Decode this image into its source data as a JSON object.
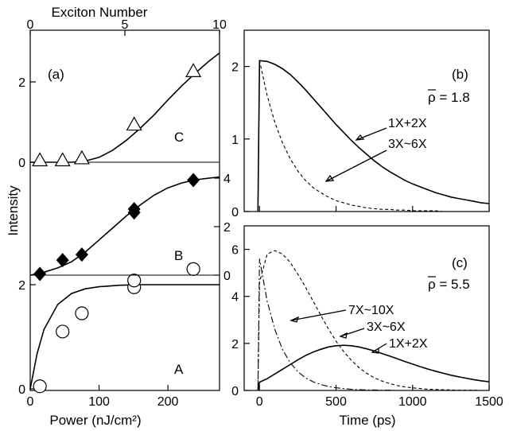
{
  "chart_data": [
    {
      "panel": "a",
      "type": "scatter",
      "panel_label": "(a)",
      "xlabel": "Power (nJ/cm²)",
      "x2label": "Exciton Number",
      "ylabel": "Intensity",
      "xlim": [
        0,
        275
      ],
      "x2lim": [
        0,
        10
      ],
      "x_ticks": [
        0,
        100,
        200
      ],
      "x2_ticks": [
        0,
        5,
        10
      ],
      "series": [
        {
          "name": "A",
          "marker": "open-circle",
          "x": [
            14,
            47,
            75,
            151,
            151,
            237
          ],
          "y": [
            0.05,
            1.1,
            1.45,
            1.95,
            2.08,
            2.3
          ],
          "fit_x": [
            0,
            10,
            20,
            40,
            60,
            80,
            100,
            130,
            160,
            200,
            240,
            275
          ],
          "fit_y": [
            0,
            0.68,
            1.14,
            1.62,
            1.83,
            1.92,
            1.96,
            1.99,
            2.0,
            2.0,
            2.0,
            2.0
          ],
          "y_ticks_left": [
            0,
            2
          ]
        },
        {
          "name": "B",
          "marker": "filled-diamond",
          "x": [
            14,
            47,
            75,
            151,
            151,
            237
          ],
          "y": [
            0.05,
            0.62,
            0.85,
            2.58,
            2.72,
            3.92
          ],
          "fit_x": [
            0,
            20,
            40,
            60,
            80,
            100,
            120,
            140,
            160,
            180,
            200,
            220,
            240,
            275
          ],
          "fit_y": [
            0,
            0.12,
            0.3,
            0.55,
            0.95,
            1.45,
            1.95,
            2.45,
            2.9,
            3.3,
            3.6,
            3.8,
            3.93,
            4.05
          ],
          "y_ticks_right": [
            0,
            2,
            4
          ]
        },
        {
          "name": "C",
          "marker": "open-triangle",
          "x": [
            14,
            47,
            75,
            151,
            237
          ],
          "y": [
            0.03,
            0.03,
            0.08,
            0.92,
            2.25
          ],
          "fit_x": [
            0,
            60,
            80,
            100,
            120,
            140,
            160,
            180,
            200,
            220,
            240,
            260,
            275
          ],
          "fit_y": [
            0,
            0,
            0.03,
            0.12,
            0.3,
            0.55,
            0.85,
            1.18,
            1.55,
            1.9,
            2.22,
            2.52,
            2.72
          ],
          "y_ticks_left": [
            0,
            2
          ]
        }
      ]
    },
    {
      "panel": "b",
      "type": "line",
      "panel_label": "(b)",
      "rho_label": "ρ = 1.8",
      "xlabel": "",
      "xlim": [
        -100,
        1500
      ],
      "ylim": [
        0,
        2.5
      ],
      "y_ticks": [
        0,
        1,
        2
      ],
      "x": [
        -10,
        0,
        50,
        100,
        150,
        200,
        250,
        300,
        350,
        400,
        450,
        500,
        550,
        600,
        650,
        700,
        750,
        800,
        850,
        900,
        950,
        1000,
        1050,
        1100,
        1150,
        1200,
        1250,
        1300,
        1350,
        1400,
        1450,
        1500
      ],
      "series": [
        {
          "name": "1X+2X",
          "style": "solid",
          "y": [
            0,
            2.08,
            2.07,
            2.03,
            1.97,
            1.89,
            1.79,
            1.68,
            1.56,
            1.44,
            1.32,
            1.2,
            1.09,
            0.98,
            0.88,
            0.79,
            0.7,
            0.62,
            0.55,
            0.49,
            0.43,
            0.38,
            0.34,
            0.3,
            0.26,
            0.23,
            0.2,
            0.18,
            0.16,
            0.14,
            0.12,
            0.11
          ]
        },
        {
          "name": "3X~6X",
          "style": "dashed",
          "y": [
            0,
            2.08,
            1.6,
            1.23,
            0.95,
            0.73,
            0.56,
            0.43,
            0.33,
            0.26,
            0.2,
            0.15,
            0.12,
            0.09,
            0.07,
            0.05,
            0.04,
            0.03,
            0.03,
            0.02,
            0.02,
            0.01,
            0.01,
            0.01,
            0.01,
            0.0,
            0.0,
            0.0,
            0.0,
            0.0,
            0.0,
            0.0
          ]
        }
      ]
    },
    {
      "panel": "c",
      "type": "line",
      "panel_label": "(c)",
      "rho_label": "ρ = 5.5",
      "xlabel": "Time (ps)",
      "xlim": [
        -100,
        1500
      ],
      "ylim": [
        0,
        7
      ],
      "x_ticks": [
        0,
        500,
        1000,
        1500
      ],
      "y_ticks": [
        0,
        2,
        4,
        6
      ],
      "x": [
        -10,
        0,
        50,
        100,
        150,
        200,
        250,
        300,
        350,
        400,
        450,
        500,
        550,
        600,
        650,
        700,
        750,
        800,
        850,
        900,
        950,
        1000,
        1050,
        1100,
        1150,
        1200,
        1250,
        1300,
        1350,
        1400,
        1450,
        1500
      ],
      "series": [
        {
          "name": "7X~10X",
          "style": "dashdot",
          "y": [
            0,
            5.6,
            3.8,
            2.6,
            1.75,
            1.18,
            0.8,
            0.54,
            0.37,
            0.25,
            0.17,
            0.11,
            0.08,
            0.05,
            0.03,
            0.02,
            0.02,
            0.01,
            0.01,
            0.0,
            0.0,
            0.0,
            0.0,
            0.0,
            0.0,
            0.0,
            0.0,
            0.0,
            0.0,
            0.0,
            0.0,
            0.0
          ]
        },
        {
          "name": "3X~6X",
          "style": "dashed",
          "y": [
            0,
            4.6,
            5.8,
            5.95,
            5.8,
            5.45,
            4.95,
            4.4,
            3.8,
            3.2,
            2.62,
            2.1,
            1.65,
            1.28,
            0.97,
            0.73,
            0.54,
            0.4,
            0.29,
            0.21,
            0.15,
            0.11,
            0.08,
            0.05,
            0.04,
            0.03,
            0.02,
            0.01,
            0.01,
            0.01,
            0.0,
            0.0
          ]
        },
        {
          "name": "1X+2X",
          "style": "solid",
          "y": [
            0,
            0.35,
            0.5,
            0.7,
            0.9,
            1.1,
            1.3,
            1.48,
            1.63,
            1.75,
            1.85,
            1.9,
            1.92,
            1.9,
            1.85,
            1.77,
            1.68,
            1.57,
            1.46,
            1.35,
            1.23,
            1.12,
            1.01,
            0.91,
            0.82,
            0.73,
            0.65,
            0.58,
            0.52,
            0.46,
            0.41,
            0.37
          ]
        }
      ]
    }
  ]
}
